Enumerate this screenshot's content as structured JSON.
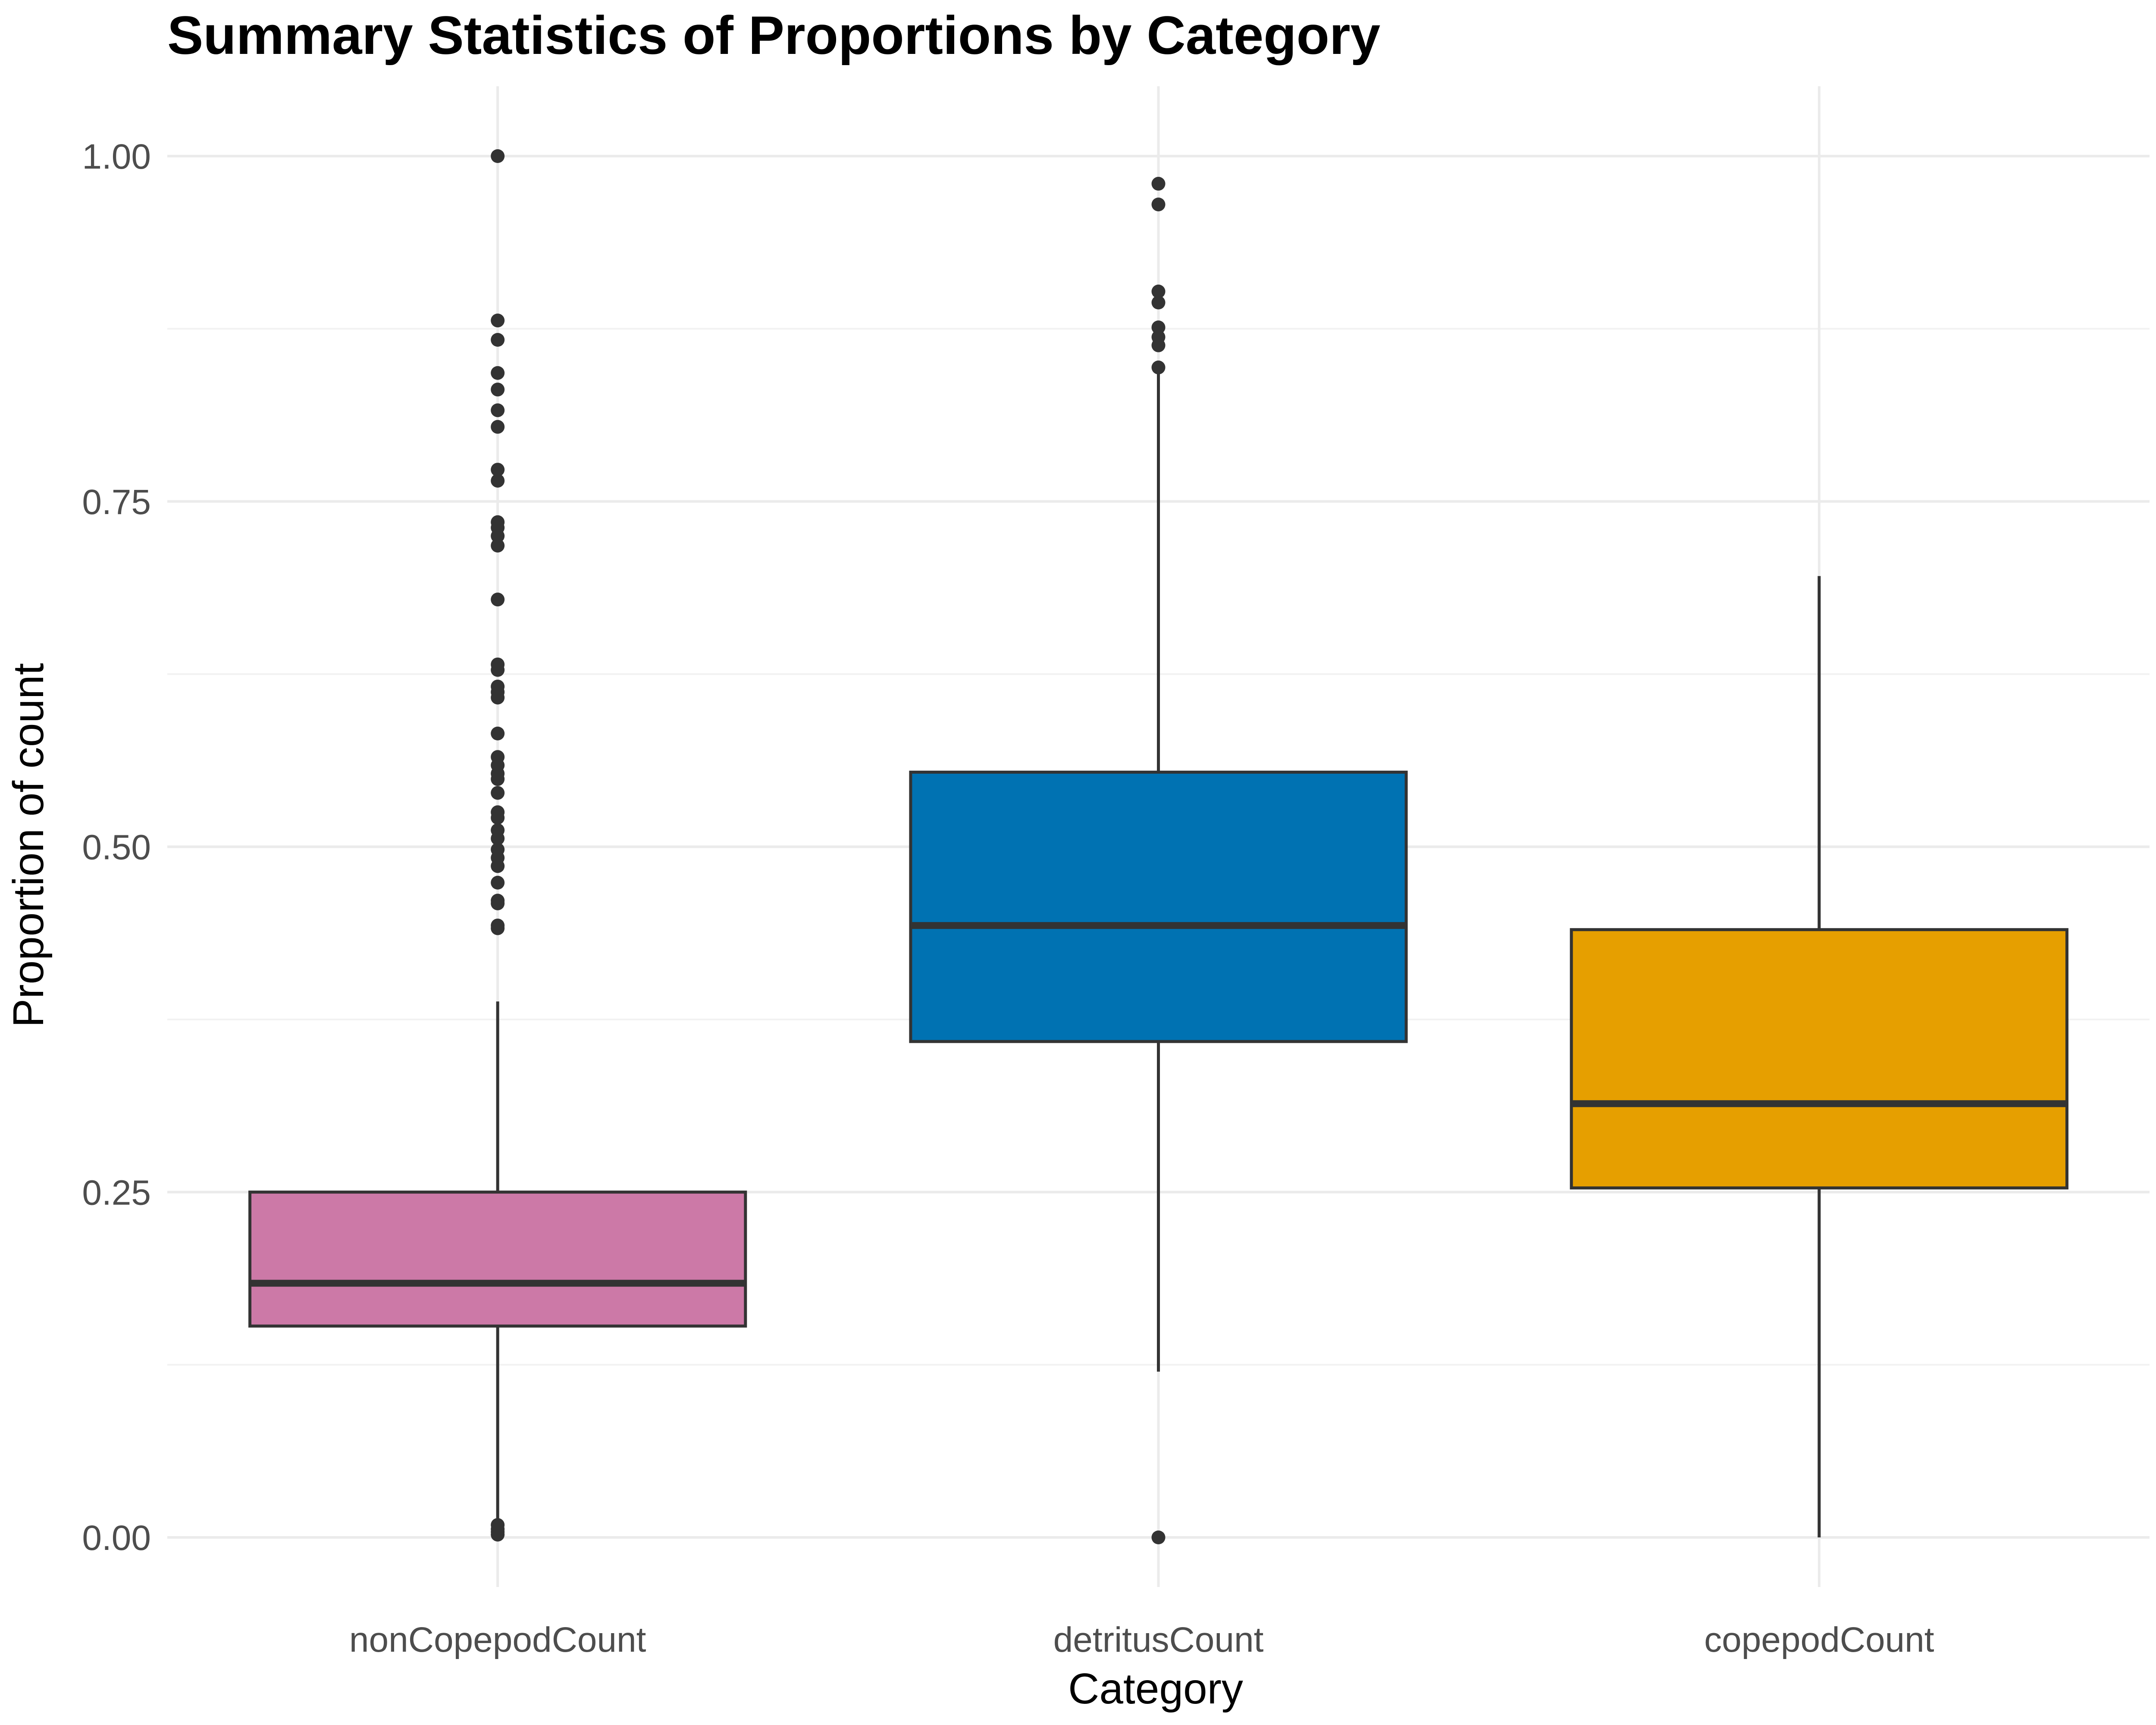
{
  "chart_data": {
    "type": "box",
    "title": "Summary Statistics of Proportions by Category",
    "xlabel": "Category",
    "ylabel": "Proportion of count",
    "ylim": [
      -0.05,
      1.05
    ],
    "yticks": [
      0.0,
      0.25,
      0.5,
      0.75,
      1.0
    ],
    "ytick_labels": [
      "0.00",
      "0.25",
      "0.50",
      "0.75",
      "1.00"
    ],
    "grid": true,
    "legend": "none",
    "categories": [
      "nonCopepodCount",
      "detritusCount",
      "copepodCount"
    ],
    "boxes": [
      {
        "category": "nonCopepodCount",
        "color": "#CC79A7",
        "whisker_low": 0.0,
        "q1": 0.153,
        "median": 0.184,
        "q3": 0.25,
        "whisker_high": 0.388,
        "outliers": [
          1.0,
          0.881,
          0.867,
          0.843,
          0.831,
          0.816,
          0.804,
          0.773,
          0.765,
          0.735,
          0.731,
          0.725,
          0.718,
          0.679,
          0.632,
          0.628,
          0.616,
          0.612,
          0.608,
          0.582,
          0.565,
          0.559,
          0.553,
          0.549,
          0.539,
          0.525,
          0.521,
          0.512,
          0.506,
          0.498,
          0.492,
          0.486,
          0.474,
          0.461,
          0.459,
          0.443,
          0.441,
          0.009,
          0.006,
          0.004,
          0.002
        ]
      },
      {
        "category": "detritusCount",
        "color": "#0072B2",
        "whisker_low": 0.12,
        "q1": 0.359,
        "median": 0.443,
        "q3": 0.554,
        "whisker_high": 0.848,
        "outliers": [
          0.98,
          0.965,
          0.902,
          0.894,
          0.876,
          0.869,
          0.863,
          0.847,
          0.0
        ]
      },
      {
        "category": "copepodCount",
        "color": "#E69F00",
        "whisker_low": 0.0,
        "q1": 0.253,
        "median": 0.314,
        "q3": 0.44,
        "whisker_high": 0.696,
        "outliers": []
      }
    ]
  }
}
